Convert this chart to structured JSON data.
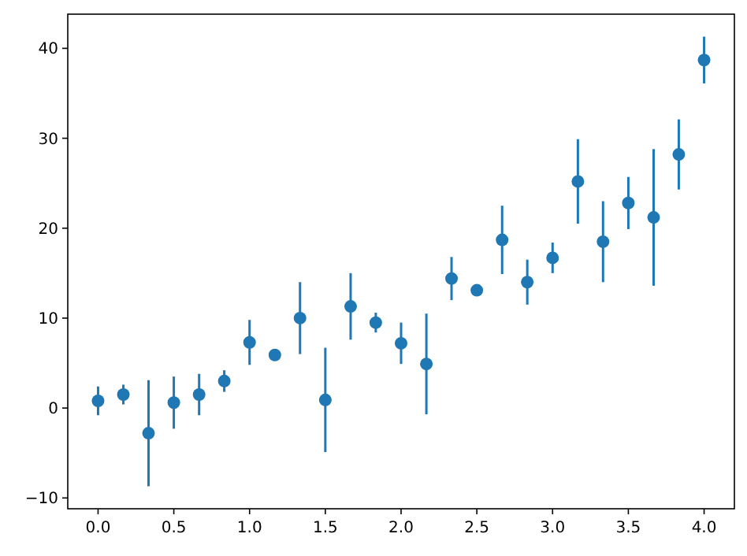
{
  "chart_data": {
    "type": "scatter",
    "marker": "circle",
    "grid": false,
    "x": [
      0,
      0.167,
      0.333,
      0.5,
      0.667,
      0.833,
      1,
      1.167,
      1.333,
      1.5,
      1.667,
      1.833,
      2,
      2.167,
      2.333,
      2.5,
      2.667,
      2.833,
      3,
      3.167,
      3.333,
      3.5,
      3.667,
      3.833,
      4
    ],
    "series": [
      {
        "color": "#1f77b4",
        "values": [
          0.8,
          1.5,
          -2.8,
          0.6,
          1.5,
          3.0,
          7.3,
          5.9,
          10.0,
          0.9,
          11.3,
          9.5,
          7.2,
          4.9,
          14.4,
          13.1,
          18.7,
          14.0,
          16.7,
          25.2,
          18.5,
          22.8,
          21.2,
          28.2,
          38.7
        ],
        "errors": [
          1.6,
          1.1,
          5.9,
          2.9,
          2.3,
          1.2,
          2.5,
          0.4,
          4.0,
          5.8,
          3.7,
          1.1,
          2.3,
          5.6,
          2.4,
          0.4,
          3.8,
          2.5,
          1.7,
          4.7,
          4.5,
          2.9,
          7.6,
          3.9,
          2.6
        ]
      }
    ],
    "xlim": [
      -0.2,
      4.2
    ],
    "xticks": [
      {
        "value": 0,
        "label": "0.0"
      },
      {
        "value": 0.5,
        "label": "0.5"
      },
      {
        "value": 1,
        "label": "1.0"
      },
      {
        "value": 1.5,
        "label": "1.5"
      },
      {
        "value": 2,
        "label": "2.0"
      },
      {
        "value": 2.5,
        "label": "2.5"
      },
      {
        "value": 3,
        "label": "3.0"
      },
      {
        "value": 3.5,
        "label": "3.5"
      },
      {
        "value": 4,
        "label": "4.0"
      }
    ],
    "ylim": [
      -11.2,
      43.8
    ],
    "yticks": [
      {
        "value": -10,
        "label": "−10"
      },
      0,
      10,
      20,
      30,
      40
    ]
  }
}
